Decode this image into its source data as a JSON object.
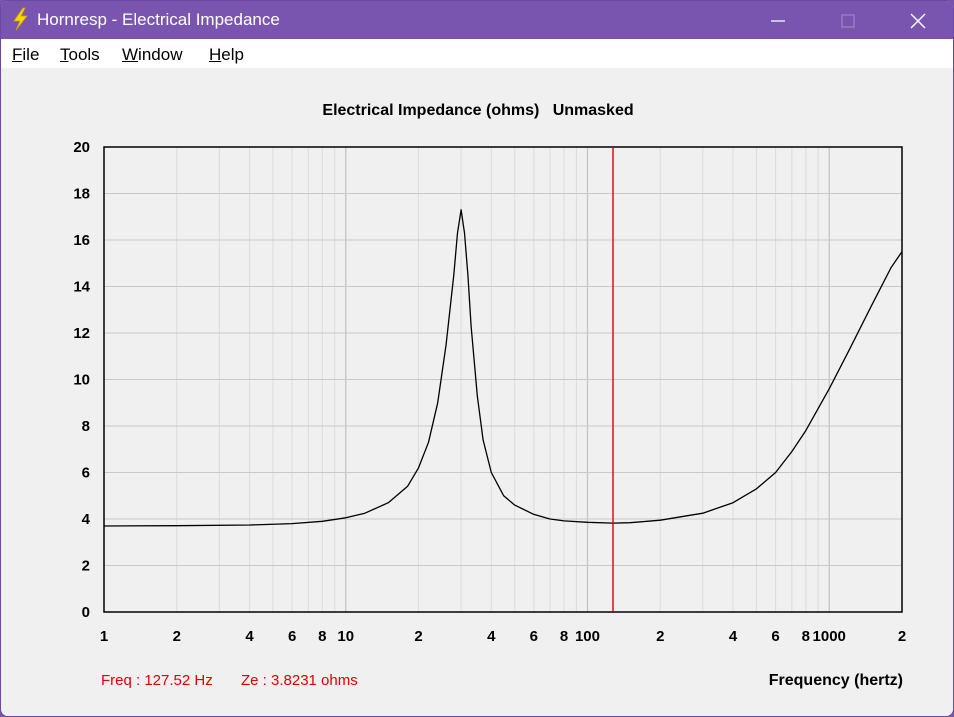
{
  "window": {
    "title": "Hornresp - Electrical Impedance",
    "icon": "lightning-bolt-icon",
    "controls": [
      "minimize-icon",
      "maximize-icon",
      "close-icon"
    ]
  },
  "menu": [
    {
      "accel": "F",
      "rest": "ile"
    },
    {
      "accel": "T",
      "rest": "ools"
    },
    {
      "accel": "W",
      "rest": "indow"
    },
    {
      "accel": "H",
      "rest": "elp"
    }
  ],
  "chart_data": {
    "type": "line",
    "title": "Electrical Impedance (ohms)   Unmasked",
    "xlabel": "Frequency (hertz)",
    "ylabel": "",
    "x_scale": "log",
    "xlim": [
      1,
      2000
    ],
    "ylim": [
      0,
      20
    ],
    "yticks": [
      0,
      2,
      4,
      6,
      8,
      10,
      12,
      14,
      16,
      18,
      20
    ],
    "xtick_labels": [
      {
        "x": 1,
        "label": "1"
      },
      {
        "x": 2,
        "label": "2"
      },
      {
        "x": 4,
        "label": "4"
      },
      {
        "x": 6,
        "label": "6"
      },
      {
        "x": 8,
        "label": "8"
      },
      {
        "x": 10,
        "label": "10"
      },
      {
        "x": 20,
        "label": "2"
      },
      {
        "x": 40,
        "label": "4"
      },
      {
        "x": 60,
        "label": "6"
      },
      {
        "x": 80,
        "label": "8"
      },
      {
        "x": 100,
        "label": "100"
      },
      {
        "x": 200,
        "label": "2"
      },
      {
        "x": 400,
        "label": "4"
      },
      {
        "x": 600,
        "label": "6"
      },
      {
        "x": 800,
        "label": "8"
      },
      {
        "x": 1000,
        "label": "1000"
      },
      {
        "x": 2000,
        "label": "2"
      }
    ],
    "grid": true,
    "marker_freq": 127.52,
    "readout_freq": "Freq : 127.52 Hz",
    "readout_ze": "Ze : 3.8231 ohms",
    "series": [
      {
        "color": "#000000",
        "x": [
          1,
          2,
          4,
          6,
          8,
          10,
          12,
          15,
          18,
          20,
          22,
          24,
          26,
          28,
          29,
          30,
          31,
          32,
          33,
          35,
          37,
          40,
          45,
          50,
          60,
          70,
          80,
          100,
          127.52,
          150,
          200,
          300,
          400,
          500,
          600,
          700,
          800,
          1000,
          1200,
          1500,
          1800,
          2000
        ],
        "y": [
          3.7,
          3.71,
          3.74,
          3.8,
          3.9,
          4.05,
          4.25,
          4.7,
          5.4,
          6.2,
          7.3,
          9.0,
          11.5,
          14.5,
          16.3,
          17.3,
          16.3,
          14.5,
          12.3,
          9.3,
          7.4,
          6.0,
          5.0,
          4.6,
          4.2,
          4.0,
          3.92,
          3.86,
          3.8231,
          3.84,
          3.95,
          4.25,
          4.7,
          5.3,
          6.0,
          6.9,
          7.8,
          9.6,
          11.2,
          13.2,
          14.8,
          15.5
        ]
      }
    ]
  }
}
